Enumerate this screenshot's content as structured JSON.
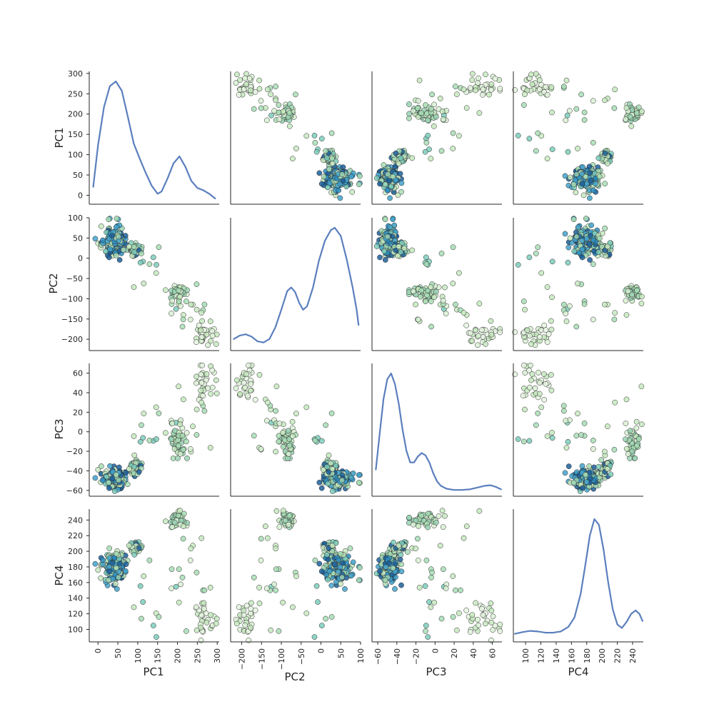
{
  "chart_data": {
    "type": "scatter",
    "subtype": "pair-plot",
    "variables": [
      "PC1",
      "PC2",
      "PC3",
      "PC4"
    ],
    "axis_labels": [
      "PC1",
      "PC2",
      "PC3",
      "PC4"
    ],
    "ranges": {
      "PC1": [
        -22,
        305
      ],
      "PC2": [
        -228,
        100
      ],
      "PC3": [
        -66,
        70
      ],
      "PC4": [
        84,
        254
      ]
    },
    "ticks": {
      "PC1": [
        0,
        50,
        100,
        150,
        200,
        250,
        300
      ],
      "PC2": [
        -200,
        -150,
        -100,
        -50,
        0,
        50,
        100
      ],
      "PC3": [
        -60,
        -40,
        -20,
        0,
        20,
        40,
        60
      ],
      "PC4": [
        100,
        120,
        140,
        160,
        180,
        200,
        220,
        240
      ]
    },
    "tick_labels": {
      "PC1": [
        "0",
        "50",
        "100",
        "150",
        "200",
        "250",
        "300"
      ],
      "PC2": [
        "−200",
        "−150",
        "−100",
        "−50",
        "0",
        "50",
        "100"
      ],
      "PC3": [
        "−60",
        "−40",
        "−20",
        "0",
        "20",
        "40",
        "60"
      ],
      "PC4": [
        "100",
        "120",
        "140",
        "160",
        "180",
        "200",
        "220",
        "240"
      ]
    },
    "kde": {
      "color": "#5b7fbd",
      "curves": {
        "PC1": [
          [
            -12,
            0.1
          ],
          [
            0,
            0.45
          ],
          [
            15,
            0.78
          ],
          [
            30,
            0.96
          ],
          [
            45,
            1.0
          ],
          [
            60,
            0.92
          ],
          [
            75,
            0.7
          ],
          [
            90,
            0.47
          ],
          [
            105,
            0.34
          ],
          [
            120,
            0.22
          ],
          [
            135,
            0.11
          ],
          [
            150,
            0.04
          ],
          [
            160,
            0.06
          ],
          [
            175,
            0.17
          ],
          [
            190,
            0.3
          ],
          [
            205,
            0.36
          ],
          [
            220,
            0.27
          ],
          [
            235,
            0.15
          ],
          [
            250,
            0.09
          ],
          [
            265,
            0.07
          ],
          [
            280,
            0.04
          ],
          [
            295,
            0.0
          ]
        ],
        "PC2": [
          [
            -220,
            0.05
          ],
          [
            -205,
            0.08
          ],
          [
            -190,
            0.09
          ],
          [
            -175,
            0.07
          ],
          [
            -160,
            0.03
          ],
          [
            -145,
            0.02
          ],
          [
            -130,
            0.05
          ],
          [
            -115,
            0.15
          ],
          [
            -100,
            0.3
          ],
          [
            -85,
            0.46
          ],
          [
            -75,
            0.49
          ],
          [
            -65,
            0.45
          ],
          [
            -55,
            0.36
          ],
          [
            -45,
            0.3
          ],
          [
            -35,
            0.33
          ],
          [
            -20,
            0.49
          ],
          [
            -5,
            0.72
          ],
          [
            10,
            0.89
          ],
          [
            25,
            0.98
          ],
          [
            35,
            1.0
          ],
          [
            50,
            0.93
          ],
          [
            65,
            0.73
          ],
          [
            80,
            0.49
          ],
          [
            90,
            0.3
          ],
          [
            95,
            0.17
          ]
        ],
        "PC3": [
          [
            -62,
            0.18
          ],
          [
            -58,
            0.48
          ],
          [
            -54,
            0.78
          ],
          [
            -50,
            0.95
          ],
          [
            -46,
            1.0
          ],
          [
            -42,
            0.91
          ],
          [
            -38,
            0.74
          ],
          [
            -34,
            0.52
          ],
          [
            -30,
            0.34
          ],
          [
            -26,
            0.24
          ],
          [
            -22,
            0.24
          ],
          [
            -18,
            0.29
          ],
          [
            -14,
            0.32
          ],
          [
            -10,
            0.3
          ],
          [
            -6,
            0.24
          ],
          [
            -2,
            0.15
          ],
          [
            2,
            0.08
          ],
          [
            6,
            0.04
          ],
          [
            12,
            0.015
          ],
          [
            20,
            0.005
          ],
          [
            28,
            0.005
          ],
          [
            36,
            0.01
          ],
          [
            44,
            0.025
          ],
          [
            52,
            0.04
          ],
          [
            58,
            0.045
          ],
          [
            64,
            0.03
          ],
          [
            69,
            0.01
          ]
        ],
        "PC4": [
          [
            86,
            0.02
          ],
          [
            96,
            0.035
          ],
          [
            106,
            0.045
          ],
          [
            116,
            0.04
          ],
          [
            126,
            0.03
          ],
          [
            136,
            0.03
          ],
          [
            146,
            0.04
          ],
          [
            156,
            0.08
          ],
          [
            164,
            0.16
          ],
          [
            172,
            0.36
          ],
          [
            178,
            0.6
          ],
          [
            184,
            0.86
          ],
          [
            190,
            1.0
          ],
          [
            196,
            0.95
          ],
          [
            202,
            0.74
          ],
          [
            208,
            0.46
          ],
          [
            214,
            0.23
          ],
          [
            220,
            0.1
          ],
          [
            226,
            0.07
          ],
          [
            232,
            0.12
          ],
          [
            238,
            0.19
          ],
          [
            244,
            0.22
          ],
          [
            249,
            0.19
          ],
          [
            253,
            0.13
          ]
        ]
      }
    },
    "clusters": [
      {
        "center": {
          "PC1": 42,
          "PC2": 40,
          "PC3": -48,
          "PC4": 180
        },
        "spread": {
          "PC1": 14,
          "PC2": 20,
          "PC3": 5,
          "PC4": 10
        },
        "count": 170,
        "colors": [
          "#c7e9c0",
          "#a8ddb5",
          "#9ad3b4",
          "#7ccdbb",
          "#43a2ca",
          "#2b8cbe",
          "#1d5f99"
        ]
      },
      {
        "center": {
          "PC1": 95,
          "PC2": 20,
          "PC3": -35,
          "PC4": 205
        },
        "spread": {
          "PC1": 8,
          "PC2": 8,
          "PC3": 6,
          "PC4": 4
        },
        "count": 45,
        "colors": [
          "#c7e9c0",
          "#b8e3c2",
          "#a8ddb5",
          "#7ccdbb",
          "#1d5f99"
        ]
      },
      {
        "center": {
          "PC1": 200,
          "PC2": -82,
          "PC3": -10,
          "PC4": 240
        },
        "spread": {
          "PC1": 8,
          "PC2": 8,
          "PC3": 8,
          "PC4": 5
        },
        "count": 45,
        "colors": [
          "#d9f0d3",
          "#c7e9c0",
          "#a8ddb5",
          "#9ad3b4"
        ]
      },
      {
        "center": {
          "PC1": 265,
          "PC2": -190,
          "PC3": 48,
          "PC4": 115
        },
        "spread": {
          "PC1": 14,
          "PC2": 14,
          "PC3": 10,
          "PC4": 12
        },
        "count": 32,
        "colors": [
          "#e5f5e0",
          "#d9f0d3",
          "#c7e9c0"
        ]
      },
      {
        "center": {
          "PC1": 225,
          "PC2": -120,
          "PC3": 12,
          "PC4": 170
        },
        "spread": {
          "PC1": 25,
          "PC2": 30,
          "PC3": 18,
          "PC4": 40
        },
        "count": 22,
        "colors": [
          "#d9f0d3",
          "#c7e9c0",
          "#a8ddb5",
          "#7ccdbb"
        ]
      },
      {
        "center": {
          "PC1": 140,
          "PC2": -30,
          "PC3": 5,
          "PC4": 150
        },
        "spread": {
          "PC1": 20,
          "PC2": 25,
          "PC3": 15,
          "PC4": 25
        },
        "count": 10,
        "colors": [
          "#c7e9c0",
          "#a8ddb5",
          "#7ccdbb"
        ]
      }
    ]
  }
}
